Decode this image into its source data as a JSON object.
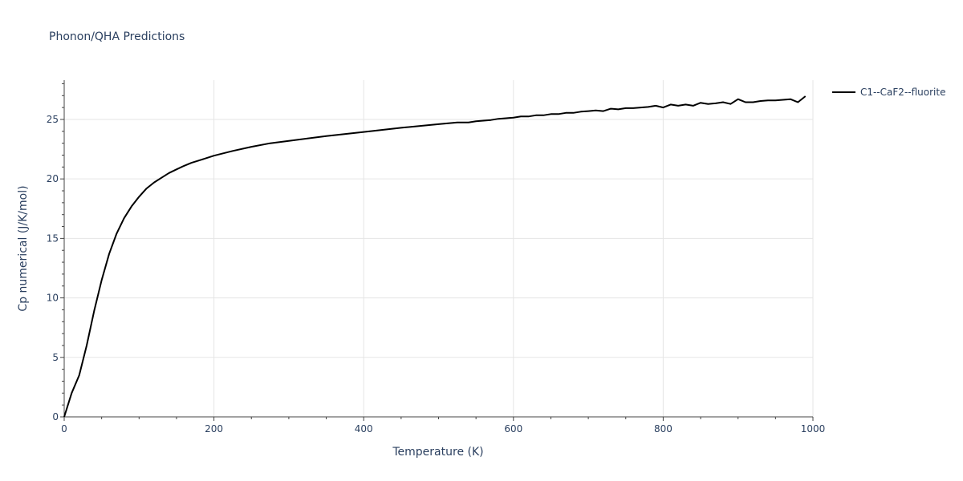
{
  "chart_data": {
    "type": "line",
    "title": "Phonon/QHA Predictions",
    "xlabel": "Temperature (K)",
    "ylabel": "Cp numerical (J/K/mol)",
    "xlim": [
      0,
      1000
    ],
    "ylim": [
      0,
      28.3
    ],
    "xticks": [
      0,
      200,
      400,
      600,
      800,
      1000
    ],
    "yticks": [
      0,
      5,
      10,
      15,
      20,
      25
    ],
    "grid": true,
    "legend_position": "top-right",
    "series": [
      {
        "name": "C1--CaF2--fluorite",
        "color": "#000000",
        "x": [
          0,
          10,
          20,
          30,
          40,
          50,
          60,
          70,
          80,
          90,
          100,
          110,
          120,
          130,
          140,
          150,
          160,
          170,
          180,
          190,
          200,
          225,
          250,
          275,
          300,
          350,
          400,
          450,
          500,
          525,
          540,
          550,
          560,
          570,
          580,
          590,
          600,
          610,
          620,
          630,
          640,
          650,
          660,
          670,
          680,
          690,
          700,
          710,
          720,
          730,
          740,
          750,
          760,
          770,
          780,
          790,
          800,
          810,
          820,
          830,
          840,
          850,
          860,
          870,
          880,
          890,
          900,
          910,
          920,
          930,
          940,
          950,
          960,
          970,
          980,
          990
        ],
        "y": [
          0,
          2.0,
          3.5,
          6.0,
          8.9,
          11.5,
          13.7,
          15.4,
          16.7,
          17.7,
          18.5,
          19.2,
          19.7,
          20.1,
          20.5,
          20.8,
          21.1,
          21.35,
          21.55,
          21.75,
          21.95,
          22.35,
          22.7,
          23.0,
          23.2,
          23.6,
          23.95,
          24.3,
          24.6,
          24.75,
          24.75,
          24.85,
          24.9,
          24.95,
          25.05,
          25.1,
          25.15,
          25.25,
          25.25,
          25.35,
          25.35,
          25.45,
          25.45,
          25.55,
          25.55,
          25.65,
          25.7,
          25.75,
          25.7,
          25.9,
          25.85,
          25.95,
          25.95,
          26.0,
          26.05,
          26.15,
          26.0,
          26.25,
          26.15,
          26.25,
          26.15,
          26.4,
          26.3,
          26.35,
          26.45,
          26.3,
          26.7,
          26.45,
          26.45,
          26.55,
          26.6,
          26.6,
          26.65,
          26.7,
          26.45,
          26.95
        ]
      }
    ]
  }
}
